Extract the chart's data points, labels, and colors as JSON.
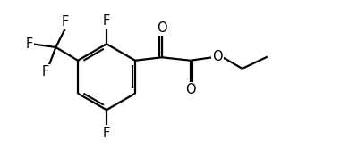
{
  "bg_color": "#ffffff",
  "line_color": "#000000",
  "line_width": 1.6,
  "font_size": 10.5,
  "figsize": [
    4.0,
    1.76
  ],
  "dpi": 100,
  "xlim": [
    0,
    11
  ],
  "ylim": [
    0,
    5.0
  ]
}
